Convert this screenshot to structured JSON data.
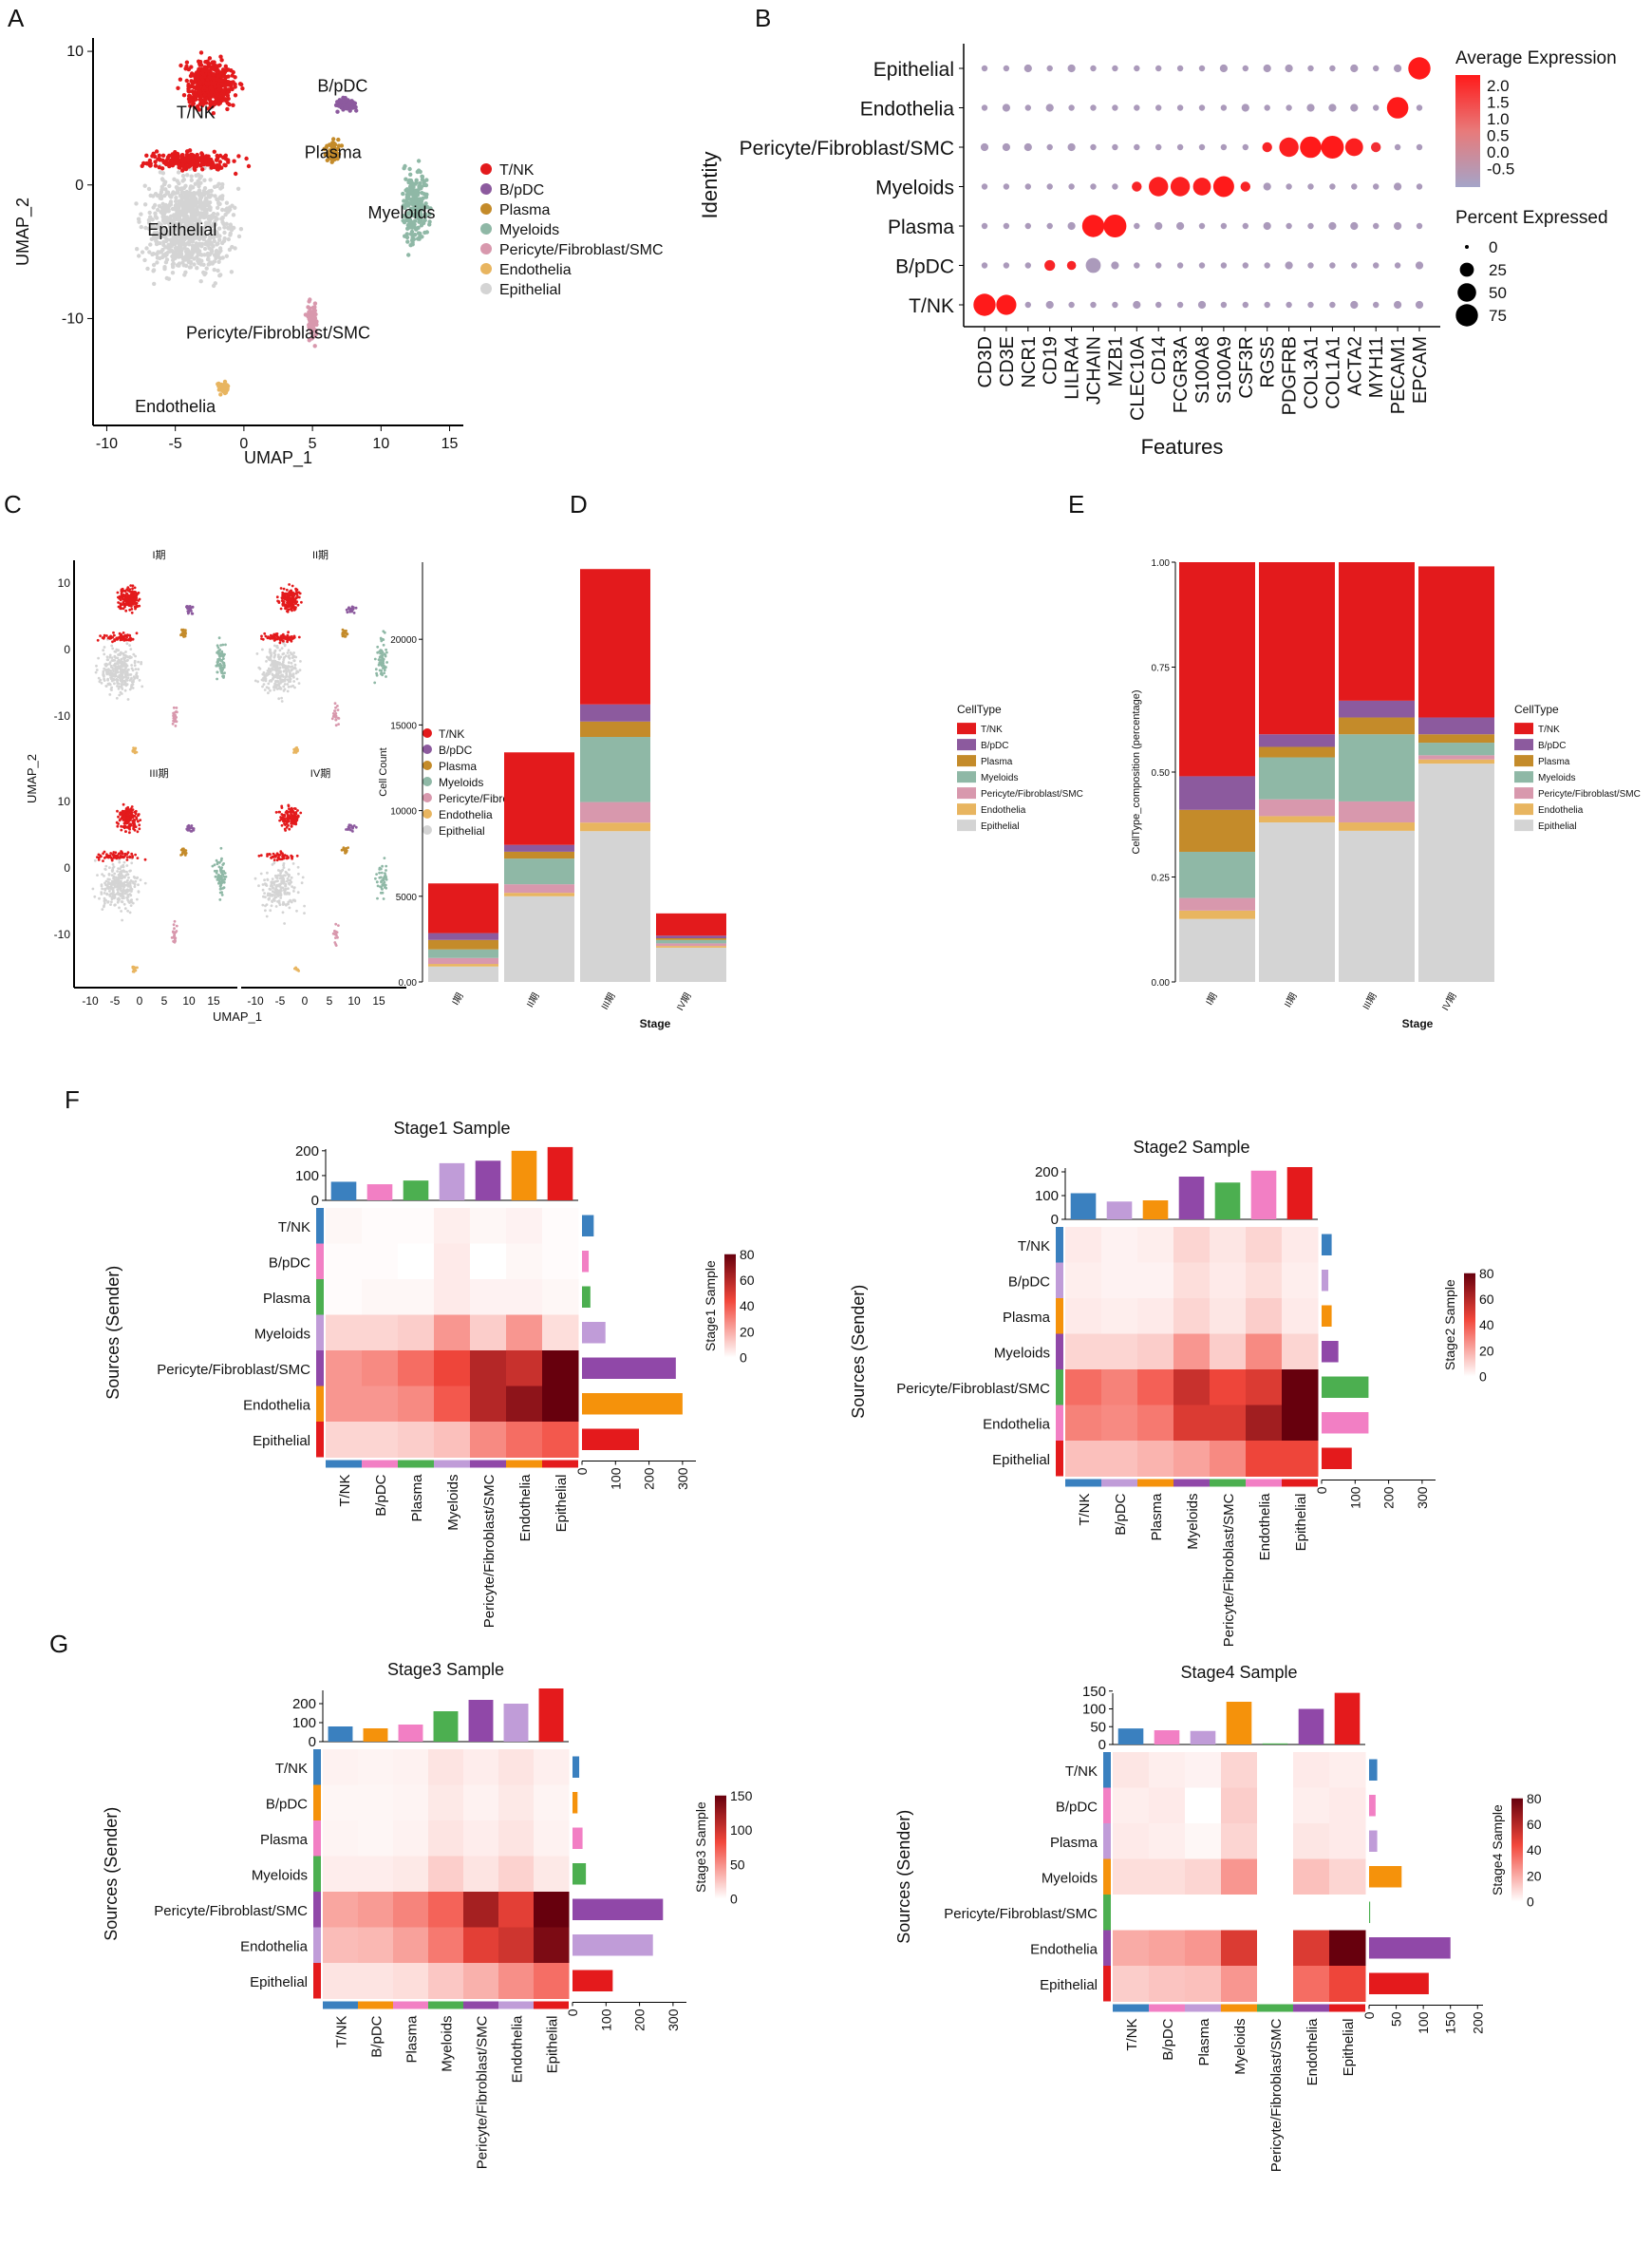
{
  "celltypes": [
    "T/NK",
    "B/pDC",
    "Plasma",
    "Myeloids",
    "Pericyte/Fibroblast/SMC",
    "Endothelia",
    "Epithelial"
  ],
  "colors": {
    "T/NK": "#e31a1c",
    "B/pDC": "#8c5a9e",
    "Plasma": "#c48b2a",
    "Myeloids": "#8fb8a6",
    "Pericyte/Fibroblast/SMC": "#d898ad",
    "Endothelia": "#e8b560",
    "Epithelial": "#d4d4d4",
    "heat_low": "#ffffff",
    "heat_mid": "#f2473b",
    "heat_high": "#67000d",
    "dot_low": "#a4a4c8",
    "dot_high": "#ff1a1a"
  },
  "panelA": {
    "letter": "A",
    "xlabel": "UMAP_1",
    "ylabel": "UMAP_2",
    "xticks": [
      -10,
      -5,
      0,
      5,
      10,
      15
    ],
    "yticks": [
      10,
      0,
      -10
    ],
    "xlim": [
      -11,
      16
    ],
    "ylim": [
      -18,
      11
    ],
    "cluster_labels": [
      "T/NK",
      "B/pDC",
      "Plasma",
      "Myeloids",
      "Epithelial",
      "Pericyte/Fibroblast/SMC",
      "Endothelia"
    ],
    "legend": [
      "T/NK",
      "B/pDC",
      "Plasma",
      "Myeloids",
      "Pericyte/Fibroblast/SMC",
      "Endothelia",
      "Epithelial"
    ]
  },
  "panelB": {
    "letter": "B",
    "ylabel": "Identity",
    "xlabel": "Features",
    "identities": [
      "Epithelial",
      "Endothelia",
      "Pericyte/Fibroblast/SMC",
      "Myeloids",
      "Plasma",
      "B/pDC",
      "T/NK"
    ],
    "features": [
      "CD3D",
      "CD3E",
      "NCR1",
      "CD19",
      "LILRA4",
      "JCHAIN",
      "MZB1",
      "CLEC10A",
      "CD14",
      "FCGR3A",
      "S100A8",
      "S100A9",
      "CSF3R",
      "RGS5",
      "PDGFRB",
      "COL3A1",
      "COL1A1",
      "ACTA2",
      "MYH11",
      "PECAM1",
      "EPCAM"
    ],
    "high_dots": [
      {
        "identity": "T/NK",
        "feature": "CD3D",
        "pct": 75,
        "avg": 2.2
      },
      {
        "identity": "T/NK",
        "feature": "CD3E",
        "pct": 60,
        "avg": 2.2
      },
      {
        "identity": "B/pDC",
        "feature": "CD19",
        "pct": 12,
        "avg": 2.0
      },
      {
        "identity": "B/pDC",
        "feature": "LILRA4",
        "pct": 8,
        "avg": 2.0
      },
      {
        "identity": "B/pDC",
        "feature": "JCHAIN",
        "pct": 30,
        "avg": -0.3
      },
      {
        "identity": "Plasma",
        "feature": "JCHAIN",
        "pct": 75,
        "avg": 2.2
      },
      {
        "identity": "Plasma",
        "feature": "MZB1",
        "pct": 80,
        "avg": 2.2
      },
      {
        "identity": "Myeloids",
        "feature": "CLEC10A",
        "pct": 10,
        "avg": 2.0
      },
      {
        "identity": "Myeloids",
        "feature": "CD14",
        "pct": 55,
        "avg": 2.1
      },
      {
        "identity": "Myeloids",
        "feature": "FCGR3A",
        "pct": 55,
        "avg": 2.1
      },
      {
        "identity": "Myeloids",
        "feature": "S100A8",
        "pct": 45,
        "avg": 2.1
      },
      {
        "identity": "Myeloids",
        "feature": "S100A9",
        "pct": 65,
        "avg": 2.2
      },
      {
        "identity": "Myeloids",
        "feature": "CSF3R",
        "pct": 10,
        "avg": 2.0
      },
      {
        "identity": "Pericyte/Fibroblast/SMC",
        "feature": "RGS5",
        "pct": 10,
        "avg": 2.0
      },
      {
        "identity": "Pericyte/Fibroblast/SMC",
        "feature": "PDGFRB",
        "pct": 55,
        "avg": 2.1
      },
      {
        "identity": "Pericyte/Fibroblast/SMC",
        "feature": "COL3A1",
        "pct": 70,
        "avg": 2.2
      },
      {
        "identity": "Pericyte/Fibroblast/SMC",
        "feature": "COL1A1",
        "pct": 80,
        "avg": 2.2
      },
      {
        "identity": "Pericyte/Fibroblast/SMC",
        "feature": "ACTA2",
        "pct": 45,
        "avg": 2.1
      },
      {
        "identity": "Pericyte/Fibroblast/SMC",
        "feature": "MYH11",
        "pct": 10,
        "avg": 1.8
      },
      {
        "identity": "Endothelia",
        "feature": "PECAM1",
        "pct": 70,
        "avg": 2.2
      },
      {
        "identity": "Epithelial",
        "feature": "EPCAM",
        "pct": 75,
        "avg": 2.2
      }
    ],
    "legend_avg_title": "Average Expression",
    "avg_ticks": [
      "2.0",
      "1.5",
      "1.0",
      "0.5",
      "0.0",
      "-0.5"
    ],
    "legend_pct_title": "Percent Expressed",
    "pct_ticks": [
      0,
      25,
      50,
      75
    ]
  },
  "panelC": {
    "letter": "C",
    "xlabel": "UMAP_1",
    "ylabel": "UMAP_2",
    "facets": [
      "I期",
      "II期",
      "III期",
      "IV期"
    ],
    "xticks": [
      -10,
      -5,
      0,
      5,
      10,
      15
    ],
    "yticks": [
      10,
      0,
      -10
    ],
    "legend": [
      "T/NK",
      "B/pDC",
      "Plasma",
      "Myeloids",
      "Pericyte/Fibroblast/SMC",
      "Endothelia",
      "Epithelial"
    ]
  },
  "panelD": {
    "letter": "D",
    "type": "bar",
    "xlabel": "Stage",
    "ylabel": "Cell Count",
    "categories": [
      "I期",
      "II期",
      "III期",
      "IV期"
    ],
    "ylim": [
      0,
      24500
    ],
    "yticks": [
      0,
      5000,
      10000,
      15000,
      20000
    ],
    "ytick_labels": [
      "0.00",
      "5000",
      "10000",
      "15000",
      "20000"
    ],
    "legend_title": "CellType",
    "series": [
      {
        "name": "Epithelial",
        "values": [
          900,
          5000,
          8800,
          2000
        ]
      },
      {
        "name": "Endothelia",
        "values": [
          150,
          200,
          500,
          100
        ]
      },
      {
        "name": "Pericyte/Fibroblast/SMC",
        "values": [
          350,
          500,
          1200,
          150
        ]
      },
      {
        "name": "Myeloids",
        "values": [
          500,
          1500,
          3800,
          200
        ]
      },
      {
        "name": "Plasma",
        "values": [
          550,
          400,
          900,
          100
        ]
      },
      {
        "name": "B/pDC",
        "values": [
          400,
          400,
          1000,
          150
        ]
      },
      {
        "name": "T/NK",
        "values": [
          2900,
          5400,
          7900,
          1300
        ]
      }
    ]
  },
  "panelE": {
    "letter": "E",
    "type": "bar",
    "xlabel": "Stage",
    "ylabel": "CellType_composition (percentage)",
    "categories": [
      "I期",
      "II期",
      "III期",
      "IV期"
    ],
    "ylim": [
      0,
      1
    ],
    "yticks": [
      0,
      0.25,
      0.5,
      0.75,
      1.0
    ],
    "ytick_labels": [
      "0.00",
      "0.25",
      "0.50",
      "0.75",
      "1.00"
    ],
    "legend_title": "CellType",
    "series": [
      {
        "name": "Epithelial",
        "values": [
          0.15,
          0.38,
          0.36,
          0.52
        ]
      },
      {
        "name": "Endothelia",
        "values": [
          0.02,
          0.015,
          0.02,
          0.01
        ]
      },
      {
        "name": "Pericyte/Fibroblast/SMC",
        "values": [
          0.03,
          0.04,
          0.05,
          0.01
        ]
      },
      {
        "name": "Myeloids",
        "values": [
          0.11,
          0.1,
          0.16,
          0.03
        ]
      },
      {
        "name": "Plasma",
        "values": [
          0.1,
          0.025,
          0.04,
          0.02
        ]
      },
      {
        "name": "B/pDC",
        "values": [
          0.08,
          0.03,
          0.04,
          0.04
        ]
      },
      {
        "name": "T/NK",
        "values": [
          0.51,
          0.41,
          0.33,
          0.36
        ]
      }
    ]
  },
  "panelF": {
    "letter": "F"
  },
  "panelG": {
    "letter": "G"
  },
  "heatmaps": [
    {
      "title": "Stage1 Sample",
      "scale_title": "Stage1 Sample",
      "ylabel": "Sources (Sender)",
      "labels": [
        "T/NK",
        "B/pDC",
        "Plasma",
        "Myeloids",
        "Pericyte/Fibroblast/SMC",
        "Endothelia",
        "Epithelial"
      ],
      "colors": [
        "#3a80bf",
        "#f27fc4",
        "#4caf50",
        "#c09cd8",
        "#9048a8",
        "#f5920b",
        "#e41a1c"
      ],
      "top_values": [
        75,
        65,
        80,
        150,
        160,
        200,
        215
      ],
      "top_ticks": [
        0,
        100,
        200
      ],
      "top_max": 230,
      "right_values": [
        35,
        20,
        25,
        70,
        280,
        300,
        170
      ],
      "right_ticks": [
        0,
        100,
        200,
        300
      ],
      "right_max": 340,
      "scale_max": 80,
      "scale_ticks": [
        0,
        20,
        40,
        60,
        80
      ],
      "hidden_col": -1,
      "matrix": [
        [
          2,
          1,
          1,
          4,
          2,
          3,
          1
        ],
        [
          1,
          1,
          0,
          5,
          0,
          2,
          1
        ],
        [
          1,
          2,
          2,
          5,
          3,
          3,
          2
        ],
        [
          10,
          10,
          12,
          25,
          12,
          25,
          8
        ],
        [
          25,
          28,
          35,
          45,
          60,
          55,
          80
        ],
        [
          25,
          25,
          28,
          40,
          60,
          70,
          80
        ],
        [
          10,
          10,
          12,
          15,
          28,
          35,
          40
        ]
      ]
    },
    {
      "title": "Stage2 Sample",
      "scale_title": "Stage2 Sample",
      "ylabel": "Sources (Sender)",
      "labels": [
        "T/NK",
        "B/pDC",
        "Plasma",
        "Myeloids",
        "Pericyte/Fibroblast/SMC",
        "Endothelia",
        "Epithelial"
      ],
      "colors": [
        "#3a80bf",
        "#c09cd8",
        "#f5920b",
        "#9048a8",
        "#4caf50",
        "#f27fc4",
        "#e41a1c"
      ],
      "top_values": [
        110,
        75,
        80,
        180,
        155,
        205,
        220
      ],
      "top_ticks": [
        0,
        100,
        200
      ],
      "top_max": 240,
      "right_values": [
        30,
        20,
        30,
        50,
        140,
        140,
        90
      ],
      "right_ticks": [
        0,
        100,
        200,
        300
      ],
      "right_max": 340,
      "scale_max": 80,
      "scale_ticks": [
        0,
        20,
        40,
        60,
        80
      ],
      "hidden_col": -1,
      "matrix": [
        [
          5,
          3,
          4,
          10,
          6,
          10,
          5
        ],
        [
          4,
          3,
          3,
          8,
          5,
          8,
          4
        ],
        [
          5,
          4,
          5,
          10,
          6,
          12,
          5
        ],
        [
          10,
          10,
          12,
          25,
          12,
          28,
          10
        ],
        [
          35,
          30,
          38,
          55,
          45,
          50,
          80
        ],
        [
          30,
          28,
          32,
          50,
          50,
          65,
          80
        ],
        [
          15,
          15,
          18,
          22,
          28,
          45,
          45
        ]
      ]
    },
    {
      "title": "Stage3 Sample",
      "scale_title": "Stage3 Sample",
      "ylabel": "Sources (Sender)",
      "labels": [
        "T/NK",
        "B/pDC",
        "Plasma",
        "Myeloids",
        "Pericyte/Fibroblast/SMC",
        "Endothelia",
        "Epithelial"
      ],
      "colors": [
        "#3a80bf",
        "#f5920b",
        "#f27fc4",
        "#4caf50",
        "#9048a8",
        "#c09cd8",
        "#e41a1c"
      ],
      "top_values": [
        80,
        70,
        90,
        160,
        220,
        200,
        280
      ],
      "top_ticks": [
        0,
        100,
        200
      ],
      "top_max": 300,
      "right_values": [
        20,
        15,
        30,
        40,
        270,
        240,
        120
      ],
      "right_ticks": [
        0,
        100,
        200,
        300
      ],
      "right_max": 340,
      "scale_max": 150,
      "scale_ticks": [
        0,
        50,
        100,
        150
      ],
      "hidden_col": -1,
      "matrix": [
        [
          6,
          5,
          6,
          12,
          8,
          12,
          7
        ],
        [
          4,
          4,
          5,
          10,
          6,
          10,
          5
        ],
        [
          5,
          4,
          6,
          12,
          8,
          12,
          6
        ],
        [
          8,
          8,
          10,
          22,
          12,
          20,
          10
        ],
        [
          40,
          45,
          55,
          70,
          120,
          90,
          150
        ],
        [
          30,
          32,
          42,
          60,
          90,
          100,
          140
        ],
        [
          12,
          12,
          15,
          25,
          35,
          50,
          65
        ]
      ]
    },
    {
      "title": "Stage4 Sample",
      "scale_title": "Stage4 Sample",
      "ylabel": "Sources (Sender)",
      "labels": [
        "T/NK",
        "B/pDC",
        "Plasma",
        "Myeloids",
        "Pericyte/Fibroblast/SMC",
        "Endothelia",
        "Epithelial"
      ],
      "colors": [
        "#3a80bf",
        "#f27fc4",
        "#c09cd8",
        "#f5920b",
        "#4caf50",
        "#9048a8",
        "#e41a1c"
      ],
      "top_values": [
        45,
        40,
        38,
        120,
        3,
        100,
        145
      ],
      "top_ticks": [
        0,
        50,
        100,
        150
      ],
      "top_max": 160,
      "right_values": [
        15,
        12,
        15,
        60,
        2,
        150,
        110
      ],
      "right_ticks": [
        0,
        50,
        100,
        150,
        200
      ],
      "right_max": 210,
      "scale_max": 80,
      "scale_ticks": [
        0,
        20,
        40,
        60,
        80
      ],
      "hidden_col": 4,
      "matrix": [
        [
          6,
          4,
          3,
          10,
          0,
          5,
          4
        ],
        [
          4,
          5,
          0,
          12,
          0,
          4,
          5
        ],
        [
          5,
          4,
          2,
          10,
          0,
          6,
          5
        ],
        [
          8,
          8,
          10,
          25,
          0,
          15,
          10
        ],
        [
          0,
          0,
          0,
          0,
          0,
          0,
          0
        ],
        [
          20,
          22,
          25,
          50,
          0,
          50,
          80
        ],
        [
          12,
          14,
          15,
          25,
          0,
          35,
          45
        ]
      ]
    }
  ]
}
